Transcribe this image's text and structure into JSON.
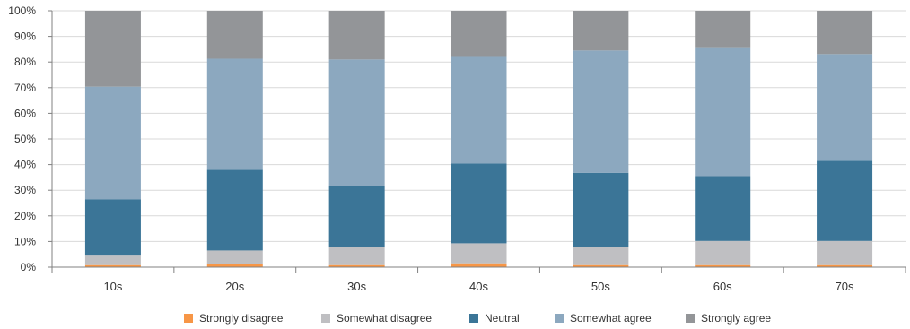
{
  "chart_data": {
    "type": "bar",
    "stacked": true,
    "percent": true,
    "categories": [
      "10s",
      "20s",
      "30s",
      "40s",
      "50s",
      "60s",
      "70s"
    ],
    "series": [
      {
        "name": "Strongly disagree",
        "color": "#F79646",
        "values": [
          0.8,
          1.2,
          0.8,
          1.5,
          0.8,
          0.8,
          0.8
        ]
      },
      {
        "name": "Somewhat disagree",
        "color": "#BFBFC2",
        "values": [
          3.7,
          5.3,
          7.2,
          7.8,
          6.9,
          9.4,
          9.4
        ]
      },
      {
        "name": "Neutral",
        "color": "#3B7597",
        "values": [
          22.0,
          31.5,
          23.8,
          31.1,
          29.1,
          25.3,
          31.3
        ]
      },
      {
        "name": "Somewhat agree",
        "color": "#8CA8BF",
        "values": [
          43.9,
          43.3,
          49.2,
          41.6,
          47.7,
          50.3,
          41.6
        ]
      },
      {
        "name": "Strongly agree",
        "color": "#939598",
        "values": [
          29.6,
          18.7,
          19.0,
          18.0,
          15.5,
          14.2,
          16.9
        ]
      }
    ],
    "ylim": [
      0,
      100
    ],
    "yticks": [
      "0%",
      "10%",
      "20%",
      "30%",
      "40%",
      "50%",
      "60%",
      "70%",
      "80%",
      "90%",
      "100%"
    ],
    "grid": true,
    "legend": "bottom"
  }
}
